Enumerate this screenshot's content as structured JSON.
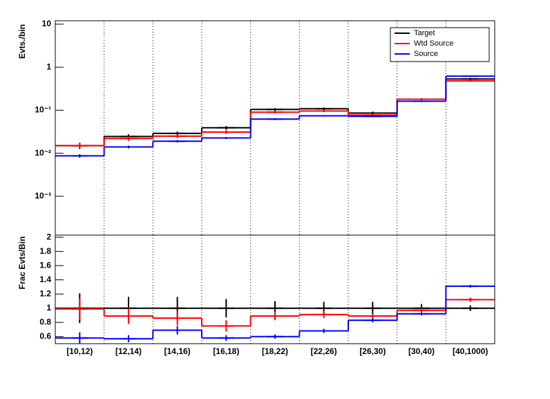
{
  "chart_data": [
    {
      "type": "step",
      "ylabel": "Evts./bin",
      "log_y": true,
      "grid_x": true,
      "legend": "top-right",
      "ylim": [
        0.000125,
        12
      ],
      "yticks": [
        {
          "value": 0.001,
          "label": "10⁻³"
        },
        {
          "value": 0.01,
          "label": "10⁻²"
        },
        {
          "value": 0.1,
          "label": "10⁻¹"
        },
        1,
        10
      ],
      "series": [
        {
          "name": "Target",
          "color": "#000000",
          "values": [
            0.015,
            0.0245,
            0.029,
            0.039,
            0.104,
            0.108,
            0.086,
            0.18,
            0.53
          ],
          "errors": [
            0.0025,
            0.003,
            0.003,
            0.004,
            0.008,
            0.008,
            0.007,
            0.01,
            0.03
          ]
        },
        {
          "name": "Wtd Source",
          "color": "#ff0000",
          "values": [
            0.015,
            0.022,
            0.025,
            0.031,
            0.09,
            0.096,
            0.077,
            0.18,
            0.48
          ],
          "errors": [
            0.002,
            0.0025,
            0.0025,
            0.003,
            0.006,
            0.006,
            0.005,
            0.008,
            0.02
          ]
        },
        {
          "name": "Source",
          "color": "#0000ff",
          "values": [
            0.0087,
            0.014,
            0.019,
            0.0226,
            0.062,
            0.074,
            0.072,
            0.162,
            0.62
          ],
          "errors": [
            0.0008,
            0.001,
            0.0012,
            0.0012,
            0.003,
            0.003,
            0.003,
            0.005,
            0.02
          ]
        }
      ]
    },
    {
      "type": "step",
      "ylabel": "Frac Evts/Bin",
      "grid_x": true,
      "categories": [
        "[10,12)",
        "[12,14)",
        "[14,16)",
        "[16,18)",
        "[18,22)",
        "[22,26)",
        "[26,30)",
        "[30,40)",
        "[40,1000)"
      ],
      "ylim": [
        0.5,
        2.03
      ],
      "yticks": [
        0.6,
        0.8,
        1,
        1.2,
        1.4,
        1.6,
        1.8,
        2
      ],
      "series": [
        {
          "color": "#000000",
          "values": [
            1,
            1,
            1,
            1,
            1,
            1,
            1,
            1,
            1
          ],
          "errors": [
            0.21,
            0.16,
            0.16,
            0.13,
            0.1,
            0.09,
            0.09,
            0.06,
            0.04
          ]
        },
        {
          "color": "#ff0000",
          "values": [
            0.99,
            0.89,
            0.86,
            0.75,
            0.89,
            0.91,
            0.89,
            0.97,
            1.12
          ],
          "errors": [
            0.15,
            0.11,
            0.1,
            0.08,
            0.06,
            0.05,
            0.04,
            0.03,
            0.03
          ]
        },
        {
          "color": "#0000ff",
          "values": [
            0.58,
            0.57,
            0.69,
            0.58,
            0.6,
            0.68,
            0.83,
            0.92,
            1.31
          ],
          "errors": [
            0.08,
            0.05,
            0.06,
            0.04,
            0.03,
            0.03,
            0.03,
            0.02,
            0.02
          ]
        }
      ]
    }
  ]
}
